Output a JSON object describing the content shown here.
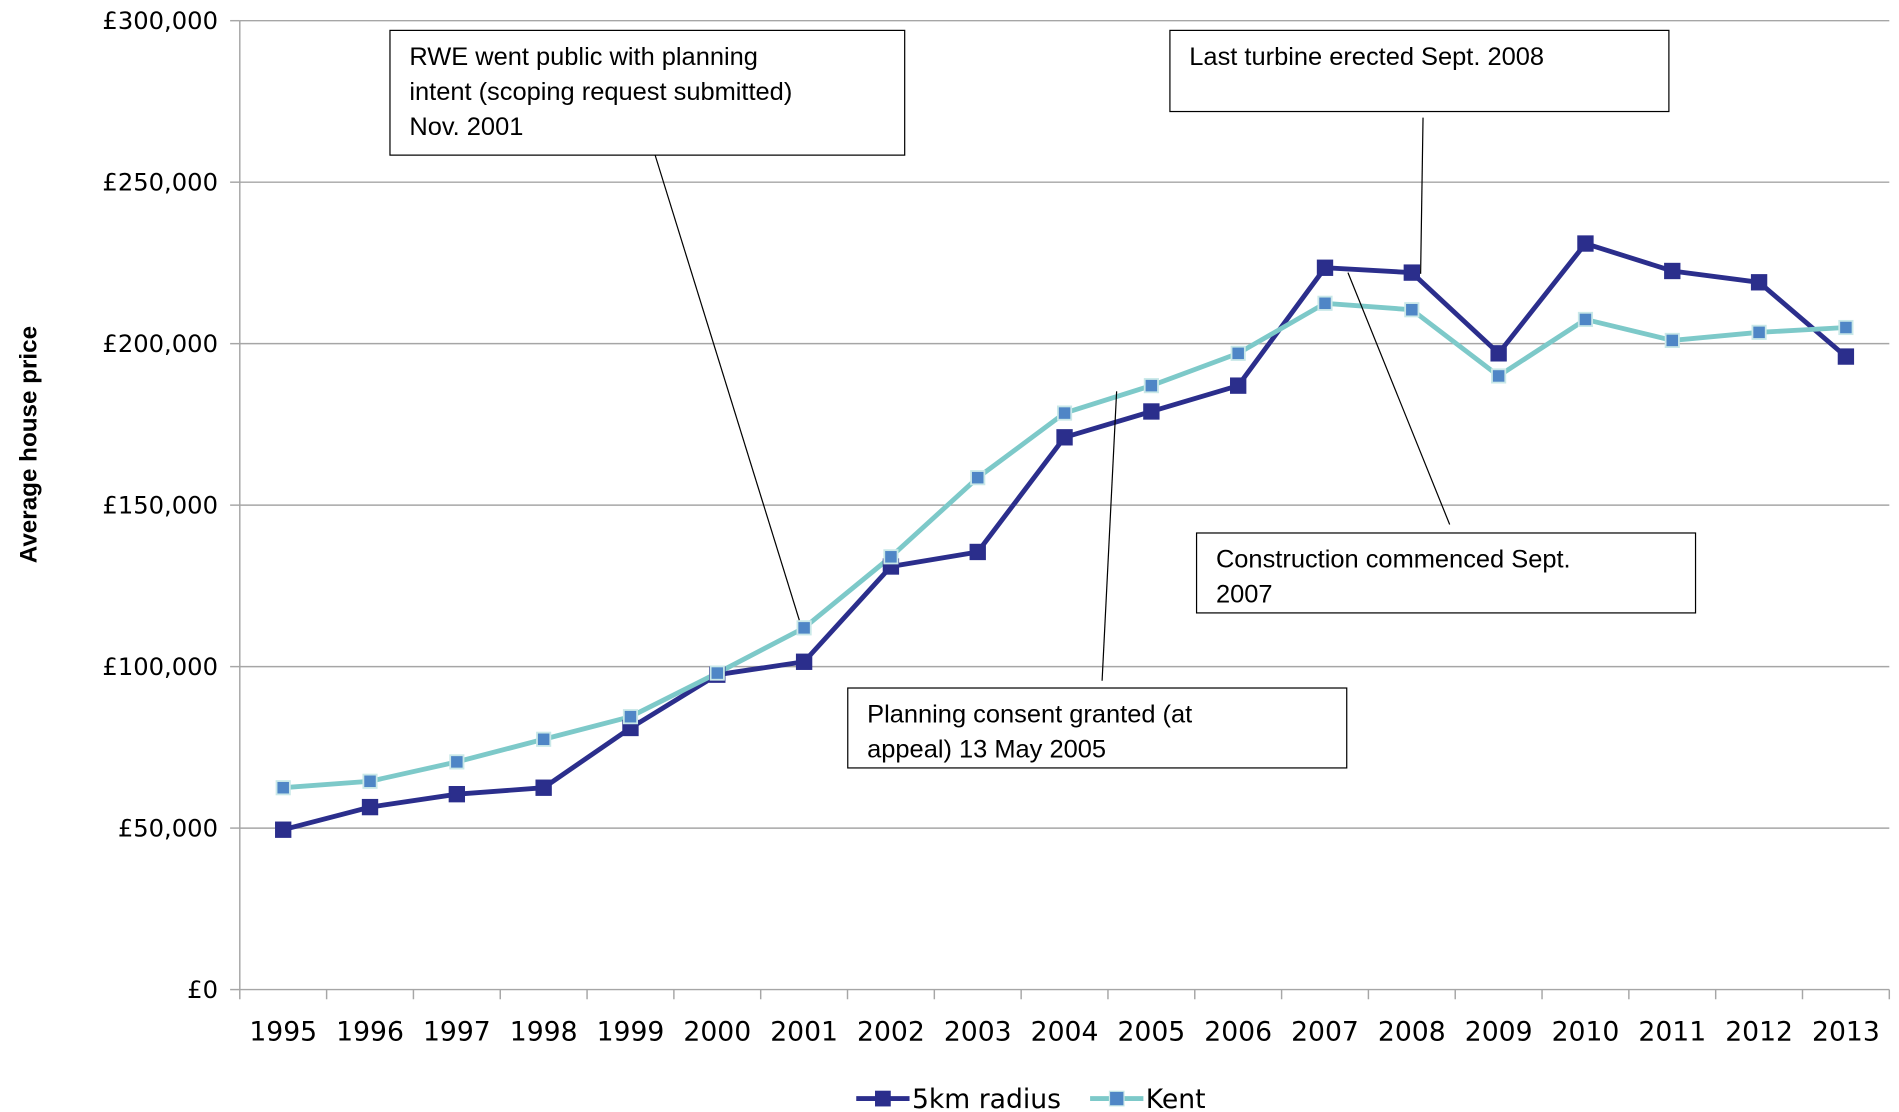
{
  "chart_data": {
    "type": "line",
    "y_label": "Average house price",
    "categories": [
      "1995",
      "1996",
      "1997",
      "1998",
      "1999",
      "2000",
      "2001",
      "2002",
      "2003",
      "2004",
      "2005",
      "2006",
      "2007",
      "2008",
      "2009",
      "2010",
      "2011",
      "2012",
      "2013"
    ],
    "series": [
      {
        "name": "5km radius",
        "color": "#2b2e8c",
        "marker_color": "#2b2e8c",
        "values": [
          49500,
          56500,
          60500,
          62500,
          81000,
          97500,
          101500,
          131000,
          135500,
          171000,
          179000,
          187000,
          223500,
          222000,
          197000,
          231000,
          222500,
          219000,
          196000
        ]
      },
      {
        "name": "Kent",
        "color": "#7dc9c9",
        "marker_color": "#4f86c6",
        "values": [
          62500,
          64500,
          70500,
          77500,
          84500,
          98000,
          112000,
          134000,
          158500,
          178500,
          187000,
          197000,
          212500,
          210500,
          190000,
          207500,
          201000,
          203500,
          205000
        ]
      }
    ],
    "ylim": [
      0,
      300000
    ],
    "yticks": [
      {
        "value": 0,
        "label": "£0"
      },
      {
        "value": 50000,
        "label": "£50,000"
      },
      {
        "value": 100000,
        "label": "£100,000"
      },
      {
        "value": 150000,
        "label": "£150,000"
      },
      {
        "value": 200000,
        "label": "£200,000"
      },
      {
        "value": 250000,
        "label": "£250,000"
      },
      {
        "value": 300000,
        "label": "£300,000"
      }
    ],
    "grid": true,
    "legend": "bottom",
    "annotations": [
      {
        "lines": [
          "RWE went public with planning",
          "intent (scoping request submitted)",
          "Nov. 2001"
        ]
      },
      {
        "lines": [
          "Last turbine erected Sept. 2008"
        ]
      },
      {
        "lines": [
          "Construction commenced Sept.",
          "2007"
        ]
      },
      {
        "lines": [
          "Planning consent granted (at",
          "appeal) 13 May 2005"
        ]
      }
    ]
  }
}
